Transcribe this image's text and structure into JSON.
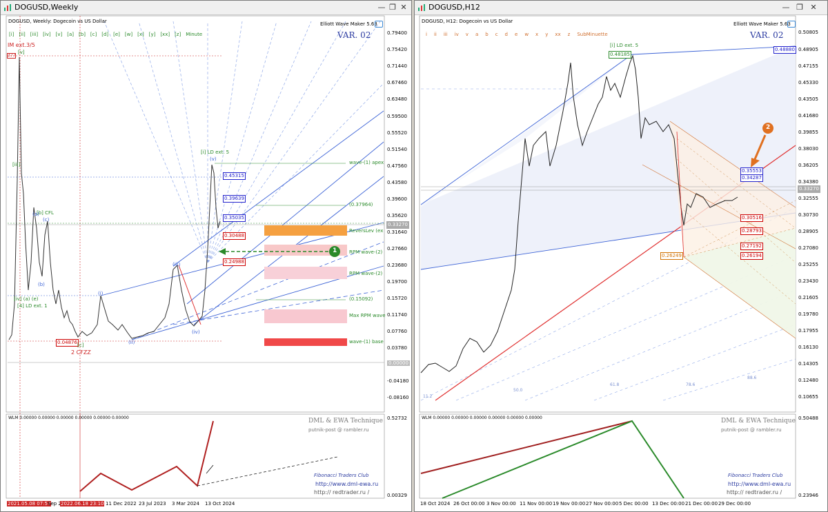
{
  "left": {
    "window_title": "DOGUSD,Weekly",
    "info": "DOGUSD, Weekly:  Dogecoin vs US Dollar",
    "brand": "Elliott Wave Maker 5.63",
    "variant": "VAR. 02",
    "wave_buttons": [
      "[i]",
      "[ii]",
      "[iii]",
      "[iv]",
      "[v]",
      "[a]",
      "[b]",
      "[c]",
      "[d]",
      "[e]",
      "[w]",
      "[x]",
      "[y]",
      "[xx]",
      "[z]",
      "Minute"
    ],
    "price_axis": [
      "0.79400",
      "0.75420",
      "0.71440",
      "0.67460",
      "0.63480",
      "0.59500",
      "0.55520",
      "0.51540",
      "0.47560",
      "0.43580",
      "0.39600",
      "0.35620",
      "0.31640",
      "0.27660",
      "0.23680",
      "0.19700",
      "0.15720",
      "0.11740",
      "0.07760",
      "0.03780",
      "0.00000",
      "-0.04180",
      "-0.08160"
    ],
    "price_tags": [
      {
        "text": "0.45315",
        "color": "#2222cc"
      },
      {
        "text": "0.39639",
        "color": "#2222cc"
      },
      {
        "text": "0.35035",
        "color": "#2222cc"
      },
      {
        "text": "0.30488",
        "color": "#cc0000"
      },
      {
        "text": "0.24988",
        "color": "#cc0000"
      },
      {
        "text": "0.04876",
        "color": "#cc0000"
      },
      {
        "text": "0.33270",
        "color": "#555555"
      },
      {
        "text": "0.00000",
        "color": "#888888"
      }
    ],
    "zones": [
      {
        "label": "ReversLev (ex",
        "color": "#f5a040"
      },
      {
        "label": "RPM wave-(2)",
        "color": "#f8c8c8"
      },
      {
        "label": "RPM wave-(2)",
        "color": "#f8d0d8"
      },
      {
        "label": "Max RPM wave",
        "color": "#f8c8d0"
      },
      {
        "label": "wave-(1) base",
        "color": "#f04848"
      }
    ],
    "level_labels": [
      "wave-(1) apex",
      "(0.37964)",
      "(0.15092)"
    ],
    "wave_labels": {
      "im_ext": "IM ext.3/5",
      "val_377": "377",
      "top_v": "[v]",
      "iii": "[iii]",
      "b_cfl": "[b] CFL",
      "a": "(a)",
      "c": "(c)",
      "iv_ld": "[iv] (a) (e)",
      "ld_ext1": "[4] LD ext. 1",
      "b2": "(b)",
      "i_label": "(i)",
      "ii_label": "(ii)",
      "iii_label": "(iii)",
      "iv_label": "(iv)",
      "v_label": "(v)",
      "ld_ext5": "[i] LD ext. 5",
      "c_bottom": "[c]",
      "cfzz": "2 CFZZ"
    },
    "callout_badge": "1",
    "osc_info": "WLM 0.00000 0.00000 0.00000 0.00000 0.00000 0.00000",
    "osc_axis": [
      "0.52732",
      "0.00329"
    ],
    "credit1": "DML & EWA Technique",
    "credit2": "putnik-post @ rambler.ru",
    "credit3": "Fibonacci   Traders   Club",
    "credit4": "http://www.dml-ewa.ru",
    "credit5": "http:// redtrader.ru /",
    "date_axis": [
      "2021.05.08 07:57",
      "Sep 2",
      "2022.06.18 23:10",
      "11 Dec 2022",
      "23 Jul 2023",
      "3 Mar 2024",
      "13 Oct 2024"
    ]
  },
  "right": {
    "window_title": "DOGUSD,H12",
    "info": "DOGUSD, H12:  Dogecoin vs US Dollar",
    "brand": "Elliott Wave Maker 5.63",
    "variant": "VAR. 02",
    "wave_buttons": [
      "i",
      "ii",
      "iii",
      "iv",
      "v",
      "a",
      "b",
      "c",
      "d",
      "e",
      "w",
      "x",
      "y",
      "xx",
      "z",
      "SubMinuette"
    ],
    "price_axis": [
      "0.50805",
      "0.48905",
      "0.47155",
      "0.45330",
      "0.43505",
      "0.41680",
      "0.39855",
      "0.38030",
      "0.36205",
      "0.34380",
      "0.32555",
      "0.30730",
      "0.28905",
      "0.27080",
      "0.25255",
      "0.23430",
      "0.21605",
      "0.19780",
      "0.17955",
      "0.16130",
      "0.14305",
      "0.12480",
      "0.10655"
    ],
    "price_tags": [
      {
        "text": "0.48185",
        "color": "#2a8a2a"
      },
      {
        "text": "0.48880",
        "color": "#2222cc"
      },
      {
        "text": "0.35553",
        "color": "#2222cc"
      },
      {
        "text": "0.34287",
        "color": "#2222cc"
      },
      {
        "text": "0.30516",
        "color": "#cc0000"
      },
      {
        "text": "0.28793",
        "color": "#cc0000"
      },
      {
        "text": "0.27192",
        "color": "#cc0000"
      },
      {
        "text": "0.26194",
        "color": "#cc0000"
      },
      {
        "text": "0.26249",
        "color": "#d07000"
      },
      {
        "text": "0.33270",
        "color": "#555555"
      }
    ],
    "ld_label": "[i] LD ext. 5",
    "callout_badge": "2",
    "fib_labels": [
      "88.6",
      "61.8",
      "78.6",
      "50.0",
      "11.2"
    ],
    "osc_info": "WLM 0.00000 0.00000 0.00000 0.00000 0.00000 0.00000",
    "osc_axis": [
      "0.50488",
      "0.23946"
    ],
    "credit1": "DML & EWA Technique",
    "credit2": "putnik-post @ rambler.ru",
    "credit3": "Fibonacci   Traders   Club",
    "credit4": "http://www.dml-ewa.ru",
    "credit5": "http:// redtrader.ru /",
    "date_axis": [
      "18 Oct 2024",
      "26 Oct 00:00",
      "3 Nov 00:00",
      "11 Nov 00:00",
      "19 Nov 00:00",
      "27 Nov 00:00",
      "5 Dec 00:00",
      "13 Dec 00:00",
      "21 Dec 00:00",
      "29 Dec 00:00"
    ]
  }
}
